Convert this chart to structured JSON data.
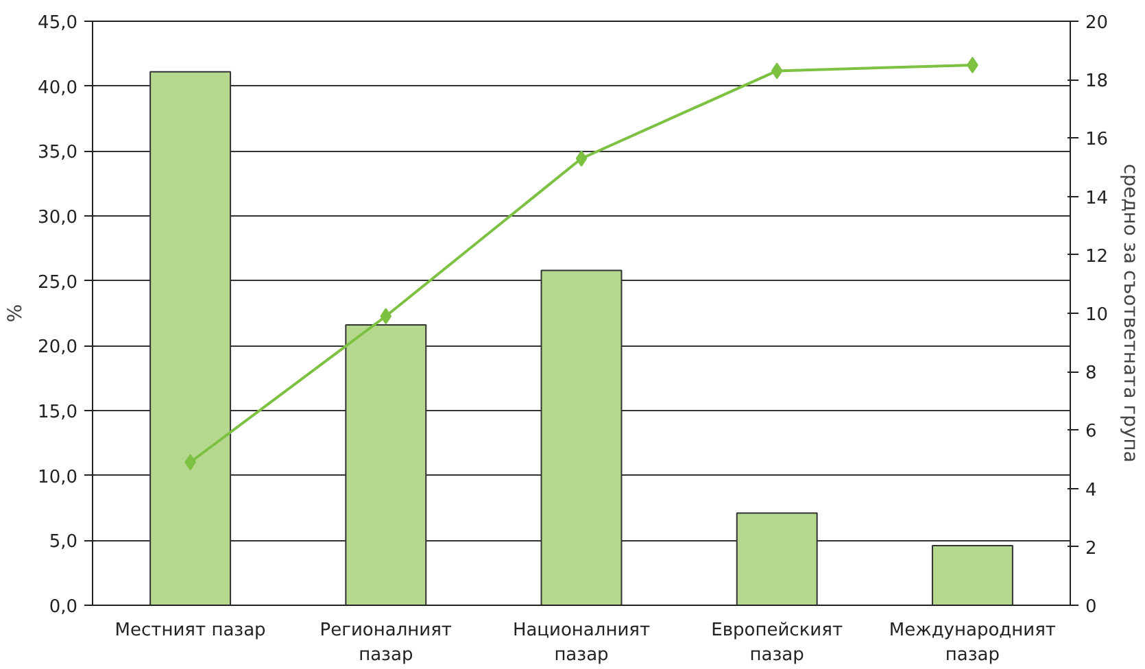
{
  "chart_data": {
    "type": "bar",
    "categories": [
      "Местният пазар",
      "Регионалният\nпазар",
      "Националният\nпазар",
      "Европейският\nпазар",
      "Международният\nпазар"
    ],
    "ylabel": "%",
    "y2label": "средно за съответната група",
    "series": [
      {
        "color": "#b5d88e",
        "values": [
          41.1,
          21.6,
          25.8,
          7.1,
          4.6
        ]
      },
      {
        "type": "line",
        "axis": "y2",
        "color": "#7dc142",
        "marker": "diamond",
        "values": [
          4.9,
          9.9,
          15.3,
          18.3,
          18.5
        ]
      }
    ],
    "ylim": [
      0,
      45
    ],
    "yticks": [
      {
        "value": 0,
        "label": "0,0"
      },
      {
        "value": 5,
        "label": "5,0"
      },
      {
        "value": 10,
        "label": "10,0"
      },
      {
        "value": 15,
        "label": "15,0"
      },
      {
        "value": 20,
        "label": "20,0"
      },
      {
        "value": 25,
        "label": "25,0"
      },
      {
        "value": 30,
        "label": "30,0"
      },
      {
        "value": 35,
        "label": "35,0"
      },
      {
        "value": 40,
        "label": "40,0"
      },
      {
        "value": 45,
        "label": "45,0"
      }
    ],
    "y2lim": [
      0,
      20
    ],
    "y2ticks": [
      0,
      2,
      4,
      6,
      8,
      10,
      12,
      14,
      16,
      18,
      20
    ],
    "grid": "y"
  }
}
